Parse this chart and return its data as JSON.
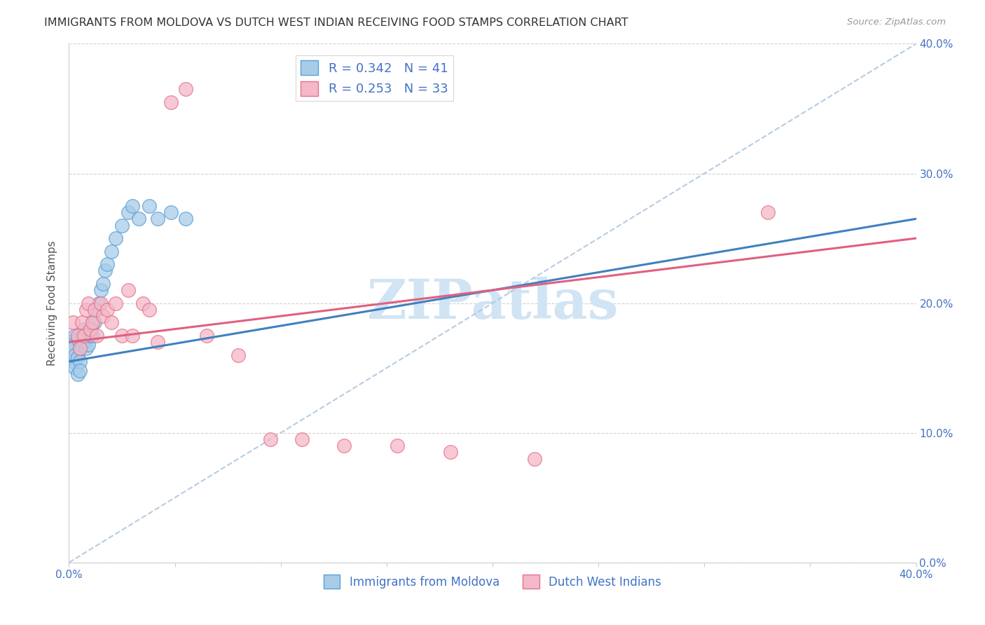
{
  "title": "IMMIGRANTS FROM MOLDOVA VS DUTCH WEST INDIAN RECEIVING FOOD STAMPS CORRELATION CHART",
  "source": "Source: ZipAtlas.com",
  "ylabel": "Receiving Food Stamps",
  "xlim": [
    0.0,
    0.4
  ],
  "ylim": [
    0.0,
    0.4
  ],
  "legend1_r": "R = 0.342",
  "legend1_n": "N = 41",
  "legend2_r": "R = 0.253",
  "legend2_n": "N = 33",
  "blue_color": "#a8cce8",
  "pink_color": "#f4b8c8",
  "blue_edge_color": "#5a9fd4",
  "pink_edge_color": "#e8708a",
  "blue_line_color": "#4080c0",
  "pink_line_color": "#e06080",
  "dashed_line_color": "#b8cce0",
  "title_color": "#333333",
  "axis_label_color": "#4472c4",
  "watermark_color": "#d0e4f4",
  "background_color": "#ffffff",
  "moldova_x": [
    0.001,
    0.002,
    0.002,
    0.003,
    0.003,
    0.003,
    0.004,
    0.004,
    0.004,
    0.005,
    0.005,
    0.005,
    0.006,
    0.006,
    0.007,
    0.007,
    0.008,
    0.008,
    0.009,
    0.009,
    0.01,
    0.01,
    0.011,
    0.011,
    0.012,
    0.013,
    0.014,
    0.015,
    0.016,
    0.017,
    0.018,
    0.02,
    0.022,
    0.025,
    0.028,
    0.03,
    0.033,
    0.038,
    0.042,
    0.048,
    0.055
  ],
  "moldova_y": [
    0.17,
    0.165,
    0.155,
    0.175,
    0.16,
    0.15,
    0.172,
    0.158,
    0.145,
    0.165,
    0.155,
    0.148,
    0.175,
    0.168,
    0.18,
    0.17,
    0.175,
    0.165,
    0.178,
    0.168,
    0.175,
    0.18,
    0.185,
    0.175,
    0.185,
    0.195,
    0.2,
    0.21,
    0.215,
    0.225,
    0.23,
    0.24,
    0.25,
    0.26,
    0.27,
    0.275,
    0.265,
    0.275,
    0.265,
    0.27,
    0.265
  ],
  "dutch_x": [
    0.002,
    0.004,
    0.005,
    0.006,
    0.007,
    0.008,
    0.009,
    0.01,
    0.011,
    0.012,
    0.013,
    0.015,
    0.016,
    0.018,
    0.02,
    0.022,
    0.025,
    0.028,
    0.03,
    0.035,
    0.038,
    0.042,
    0.048,
    0.055,
    0.065,
    0.08,
    0.095,
    0.11,
    0.13,
    0.155,
    0.18,
    0.22,
    0.33
  ],
  "dutch_y": [
    0.185,
    0.175,
    0.165,
    0.185,
    0.175,
    0.195,
    0.2,
    0.18,
    0.185,
    0.195,
    0.175,
    0.2,
    0.19,
    0.195,
    0.185,
    0.2,
    0.175,
    0.21,
    0.175,
    0.2,
    0.195,
    0.17,
    0.355,
    0.365,
    0.175,
    0.16,
    0.095,
    0.095,
    0.09,
    0.09,
    0.085,
    0.08,
    0.27
  ],
  "blue_trend_x": [
    0.0,
    0.4
  ],
  "blue_trend_y": [
    0.155,
    0.265
  ],
  "pink_trend_x": [
    0.0,
    0.4
  ],
  "pink_trend_y": [
    0.17,
    0.25
  ]
}
